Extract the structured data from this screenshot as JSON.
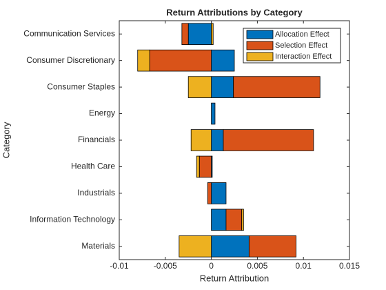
{
  "chart_data": {
    "type": "barh_stacked",
    "title": "Return Attributions by Category",
    "xlabel": "Return Attribution",
    "ylabel": "Category",
    "categories": [
      "Communication Services",
      "Consumer Discretionary",
      "Consumer Staples",
      "Energy",
      "Financials",
      "Health Care",
      "Industrials",
      "Information Technology",
      "Materials"
    ],
    "series": [
      {
        "name": "Allocation Effect",
        "color": "#0072BD",
        "values": [
          -0.0025,
          0.0025,
          0.0024,
          0.0004,
          0.0013,
          0.0001,
          0.0016,
          0.0016,
          0.0041
        ]
      },
      {
        "name": "Selection Effect",
        "color": "#D95319",
        "values": [
          -0.0007,
          -0.0067,
          0.0094,
          0,
          0.0098,
          -0.0013,
          -0.0004,
          0.0017,
          0.0051
        ]
      },
      {
        "name": "Interaction Effect",
        "color": "#EDB120",
        "values": [
          0.0002,
          -0.0013,
          -0.0025,
          0,
          -0.0022,
          -0.0003,
          0,
          0.0002,
          -0.0035
        ]
      }
    ],
    "xlim": [
      -0.01,
      0.015
    ],
    "xticks": [
      -0.01,
      -0.005,
      0,
      0.005,
      0.01,
      0.015
    ],
    "legend": "top-right",
    "grid": false
  }
}
